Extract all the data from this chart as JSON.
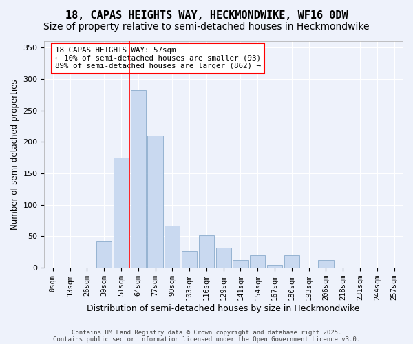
{
  "title_line1": "18, CAPAS HEIGHTS WAY, HECKMONDWIKE, WF16 0DW",
  "title_line2": "Size of property relative to semi-detached houses in Heckmondwike",
  "xlabel": "Distribution of semi-detached houses by size in Heckmondwike",
  "ylabel": "Number of semi-detached properties",
  "annotation_title": "18 CAPAS HEIGHTS WAY: 57sqm",
  "annotation_line2": "← 10% of semi-detached houses are smaller (93)",
  "annotation_line3": "89% of semi-detached houses are larger (862) →",
  "footer_line1": "Contains HM Land Registry data © Crown copyright and database right 2025.",
  "footer_line2": "Contains public sector information licensed under the Open Government Licence v3.0.",
  "bin_labels": [
    "0sqm",
    "13sqm",
    "26sqm",
    "39sqm",
    "51sqm",
    "64sqm",
    "77sqm",
    "90sqm",
    "103sqm",
    "116sqm",
    "129sqm",
    "141sqm",
    "154sqm",
    "167sqm",
    "180sqm",
    "193sqm",
    "206sqm",
    "218sqm",
    "231sqm",
    "244sqm",
    "257sqm"
  ],
  "bar_values": [
    0,
    0,
    0,
    42,
    175,
    282,
    210,
    67,
    27,
    52,
    32,
    12,
    20,
    5,
    20,
    0,
    12,
    0,
    0,
    0,
    0
  ],
  "bar_color": "#c9d9f0",
  "bar_edge_color": "#7a9fc4",
  "vline_x": 4.5,
  "vline_color": "red",
  "ylim": [
    0,
    360
  ],
  "yticks": [
    0,
    50,
    100,
    150,
    200,
    250,
    300,
    350
  ],
  "background_color": "#eef2fb",
  "grid_color": "#ffffff",
  "title_fontsize": 11,
  "subtitle_fontsize": 10
}
